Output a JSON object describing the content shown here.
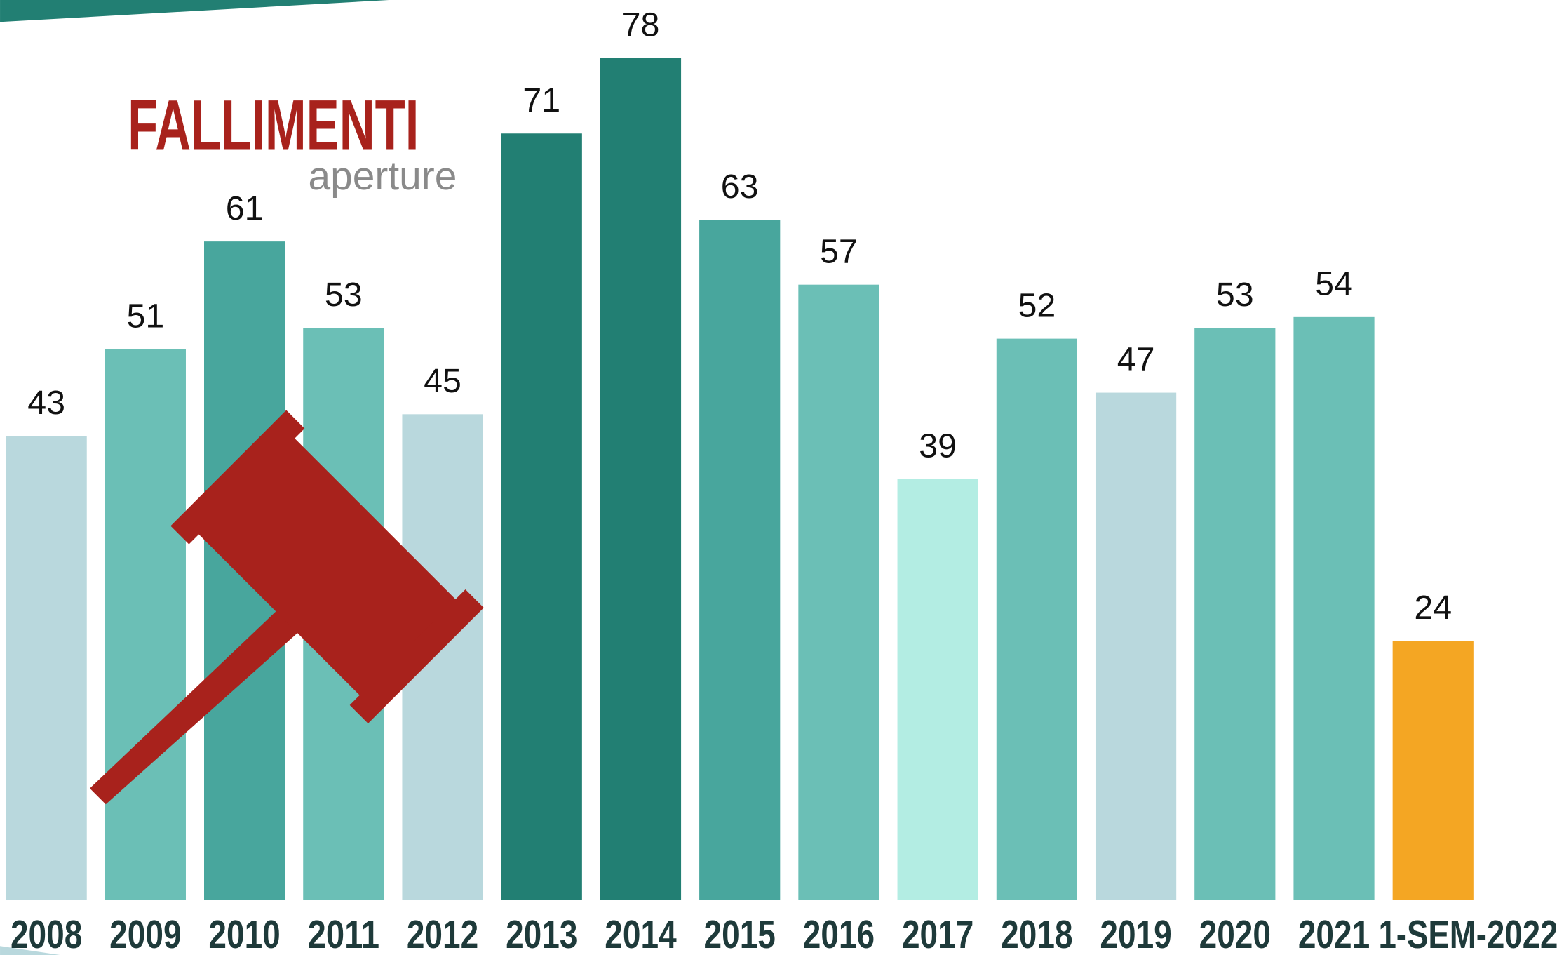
{
  "chart_data": {
    "type": "bar",
    "title": "FALLIMENTI",
    "subtitle": "aperture",
    "categories": [
      "2008",
      "2009",
      "2010",
      "2011",
      "2012",
      "2013",
      "2014",
      "2015",
      "2016",
      "2017",
      "2018",
      "2019",
      "2020",
      "2021",
      "1-SEM-2022"
    ],
    "values": [
      43,
      51,
      61,
      53,
      45,
      71,
      78,
      63,
      57,
      39,
      52,
      47,
      53,
      54,
      24
    ],
    "colors": [
      "#b9d8dd",
      "#6bbfb6",
      "#48a69d",
      "#6bbfb6",
      "#b9d8dd",
      "#227f73",
      "#227f73",
      "#48a69d",
      "#6bbfb6",
      "#b3ede3",
      "#6bbfb6",
      "#b9d8dd",
      "#6bbfb6",
      "#6bbfb6",
      "#f4a623"
    ]
  }
}
